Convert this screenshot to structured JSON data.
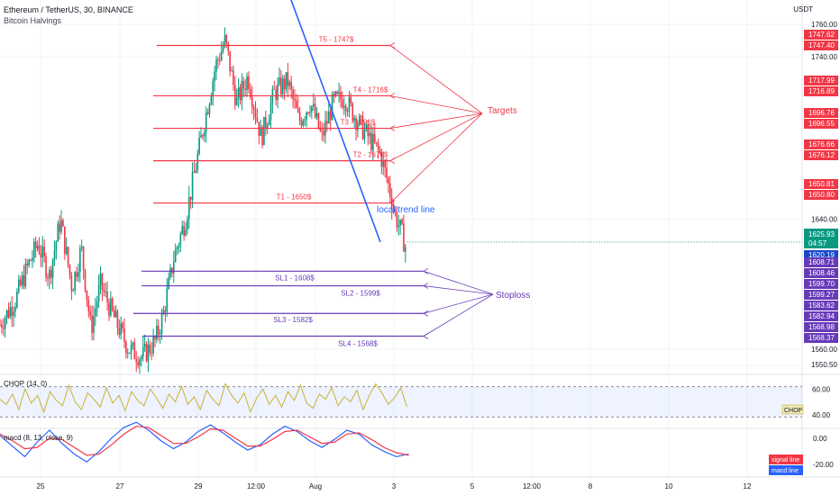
{
  "header": {
    "symbol_line": "Ethereum / TetherUS, 30, BINANCE",
    "indicator": "Bitcoin Halvings",
    "currency": "USDT"
  },
  "panes": {
    "chop_label": "CHOP (14, 0)",
    "macd_label": "macd (8, 13, close, 9)"
  },
  "chart_data": [
    {
      "type": "candlestick",
      "title": "Ethereum / TetherUS, 30, BINANCE",
      "ylim": [
        1545,
        1775
      ],
      "y_ticks": [
        "1760.00",
        "1740.00",
        "1640.00",
        "1560.00",
        "1550.50"
      ],
      "x_ticks": [
        "25",
        "27",
        "29",
        "12:00",
        "Aug",
        "3",
        "5",
        "12:00",
        "8",
        "10",
        "12"
      ],
      "price_path": [
        [
          0,
          1575
        ],
        [
          0.8,
          1590
        ],
        [
          1.5,
          1612
        ],
        [
          2.0,
          1625
        ],
        [
          2.6,
          1605
        ],
        [
          3.2,
          1640
        ],
        [
          3.8,
          1598
        ],
        [
          4.3,
          1622
        ],
        [
          4.8,
          1572
        ],
        [
          5.3,
          1600
        ],
        [
          6.0,
          1580
        ],
        [
          6.8,
          1560
        ],
        [
          7.5,
          1555
        ],
        [
          8.2,
          1565
        ],
        [
          8.6,
          1580
        ],
        [
          9.2,
          1617
        ],
        [
          9.8,
          1640
        ],
        [
          10.3,
          1670
        ],
        [
          10.8,
          1700
        ],
        [
          11.4,
          1735
        ],
        [
          11.9,
          1750
        ],
        [
          12.5,
          1712
        ],
        [
          13.1,
          1728
        ],
        [
          13.8,
          1690
        ],
        [
          14.5,
          1718
        ],
        [
          15.2,
          1725
        ],
        [
          15.8,
          1700
        ],
        [
          16.4,
          1712
        ],
        [
          17.0,
          1690
        ],
        [
          17.6,
          1712
        ],
        [
          18.2,
          1715
        ],
        [
          18.9,
          1700
        ],
        [
          19.5,
          1690
        ],
        [
          20.1,
          1680
        ],
        [
          20.5,
          1662
        ],
        [
          20.9,
          1642
        ],
        [
          21.2,
          1632
        ],
        [
          21.5,
          1620
        ]
      ],
      "current_price": "1625.93",
      "countdown": "04:57",
      "targets_label": "Targets",
      "stoploss_label": "Stoploss",
      "trend_label": "local trend line",
      "targets": [
        {
          "label": "T5 - 1747$",
          "price": 1747
        },
        {
          "label": "T4 - 1716$",
          "price": 1716
        },
        {
          "label": "T3 - 1696$",
          "price": 1696
        },
        {
          "label": "T2 - 1676$",
          "price": 1676
        },
        {
          "label": "T1 - 1650$",
          "price": 1650
        }
      ],
      "stoplosses": [
        {
          "label": "SL1 - 1608$",
          "price": 1608
        },
        {
          "label": "SL2 - 1599$",
          "price": 1599
        },
        {
          "label": "SL3 - 1582$",
          "price": 1582
        },
        {
          "label": "SL4 - 1568$",
          "price": 1568
        }
      ],
      "price_tags": [
        {
          "text": "1747.62",
          "color": "#f23645"
        },
        {
          "text": "1747.40",
          "color": "#f23645"
        },
        {
          "text": "1717.99",
          "color": "#f23645"
        },
        {
          "text": "1716.89",
          "color": "#f23645"
        },
        {
          "text": "1696.76",
          "color": "#f23645"
        },
        {
          "text": "1696.55",
          "color": "#f23645"
        },
        {
          "text": "1676.66",
          "color": "#f23645"
        },
        {
          "text": "1676.12",
          "color": "#f23645"
        },
        {
          "text": "1650.81",
          "color": "#f23645"
        },
        {
          "text": "1650.80",
          "color": "#f23645"
        },
        {
          "text": "1620.19",
          "color": "#1848cc"
        },
        {
          "text": "1608.71",
          "color": "#673ab7"
        },
        {
          "text": "1608.46",
          "color": "#673ab7"
        },
        {
          "text": "1599.70",
          "color": "#673ab7"
        },
        {
          "text": "1599.27",
          "color": "#673ab7"
        },
        {
          "text": "1583.62",
          "color": "#673ab7"
        },
        {
          "text": "1582.94",
          "color": "#673ab7"
        },
        {
          "text": "1568.98",
          "color": "#673ab7"
        },
        {
          "text": "1568.37",
          "color": "#673ab7"
        }
      ],
      "colors": {
        "target": "#f23645",
        "stoploss": "#673ab7",
        "trend": "#2962ff",
        "up": "#089981",
        "down": "#f23645"
      }
    },
    {
      "type": "line",
      "title": "CHOP (14, 0)",
      "y_ticks": [
        "60.00",
        "40.00"
      ],
      "band": [
        38.2,
        61.8
      ],
      "tag": "CHOP",
      "values": [
        52,
        48,
        56,
        44,
        60,
        49,
        55,
        42,
        58,
        51,
        47,
        63,
        50,
        44,
        57,
        52,
        46,
        61,
        49,
        55,
        43,
        58,
        51,
        47,
        60,
        53,
        45,
        56,
        50,
        62,
        48,
        54,
        44,
        59,
        52,
        47,
        64,
        55,
        49,
        57,
        42,
        53,
        60,
        48,
        55,
        46,
        58,
        51,
        63,
        49,
        45,
        56,
        52,
        61,
        47,
        54,
        50,
        59,
        44,
        55,
        64,
        57,
        48,
        53,
        61,
        46
      ]
    },
    {
      "type": "line",
      "title": "macd (8, 13, close, 9)",
      "y_ticks": [
        "0.00",
        "-20.00"
      ],
      "series": [
        {
          "name": "macd line",
          "color": "#2962ff",
          "values": [
            2,
            -6,
            -14,
            -3,
            6,
            -4,
            -12,
            -18,
            -10,
            0,
            8,
            12,
            6,
            -2,
            -8,
            -3,
            5,
            10,
            4,
            -3,
            -9,
            -5,
            3,
            9,
            5,
            -2,
            -7,
            -1,
            6,
            3,
            -5,
            -10,
            -14,
            -12
          ]
        },
        {
          "name": "signal line",
          "color": "#f23645",
          "values": [
            3,
            -2,
            -8,
            -7,
            0,
            -1,
            -7,
            -13,
            -12,
            -5,
            3,
            9,
            8,
            2,
            -4,
            -4,
            1,
            7,
            6,
            0,
            -6,
            -6,
            -1,
            5,
            6,
            1,
            -4,
            -3,
            3,
            4,
            -1,
            -7,
            -11,
            -13
          ]
        }
      ]
    }
  ]
}
